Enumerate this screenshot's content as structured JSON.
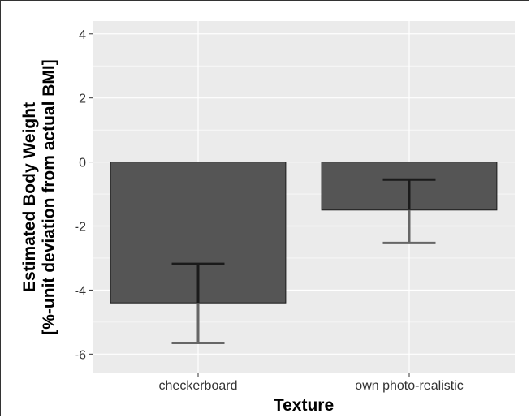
{
  "chart_data": {
    "type": "bar",
    "categories": [
      "checkerboard",
      "own photo-realistic"
    ],
    "values": [
      -4.4,
      -1.5
    ],
    "error_bars": [
      {
        "lower": -5.65,
        "upper": -3.18
      },
      {
        "lower": -2.53,
        "upper": -0.55
      }
    ],
    "title": "",
    "xlabel": "Texture",
    "ylabel_line1": "Estimated Body Weight",
    "ylabel_line2": "[%-unit deviation from actual BMI]",
    "ylim": [
      -6.6,
      4.4
    ],
    "yticks": [
      4,
      2,
      0,
      -2,
      -4,
      -6
    ],
    "ytick_labels": [
      "4",
      "2",
      "0",
      "-2",
      "-4",
      "-6"
    ],
    "grid": true,
    "colors": {
      "panel": "#EBEBEB",
      "grid": "#FFFFFF",
      "bar": "#555555",
      "bar_edge": "#1a1a1a",
      "errorbar": "#666666",
      "errorbar_inner": "#1a1a1a"
    }
  }
}
